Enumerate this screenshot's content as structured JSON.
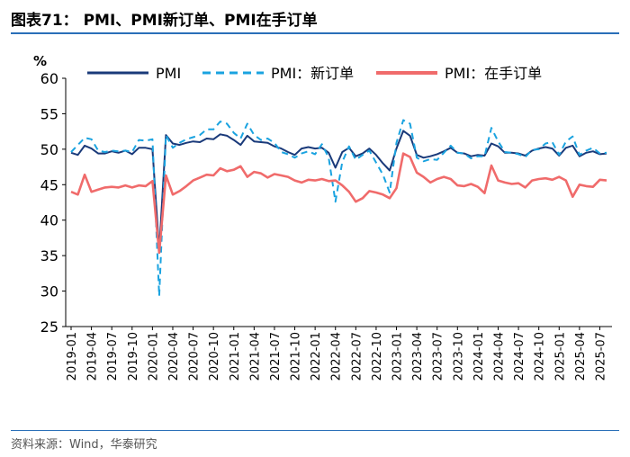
{
  "title": "图表71： PMI、PMI新订单、PMI在手订单",
  "source": "资料来源：Wind，华泰研究",
  "chart_data": {
    "type": "line",
    "ylabel": "%",
    "ylim": [
      25,
      60
    ],
    "yticks": [
      25,
      30,
      35,
      40,
      45,
      50,
      55,
      60
    ],
    "xtick_labels": [
      "2019-01",
      "2019-04",
      "2019-07",
      "2019-10",
      "2020-01",
      "2020-04",
      "2020-07",
      "2020-10",
      "2021-01",
      "2021-04",
      "2021-07",
      "2021-10",
      "2022-01",
      "2022-04",
      "2022-07",
      "2022-10",
      "2023-01",
      "2023-04",
      "2023-07",
      "2023-10",
      "2024-01",
      "2024-04",
      "2024-07",
      "2024-10",
      "2025-01",
      "2025-04",
      "2025-07"
    ],
    "x_start": "2019-01",
    "n_months": 80,
    "series": [
      {
        "name": "PMI",
        "color": "#1a3a7a",
        "dash": "none",
        "width": 2,
        "values": [
          49.5,
          49.2,
          50.5,
          50.1,
          49.4,
          49.4,
          49.7,
          49.5,
          49.8,
          49.3,
          50.2,
          50.2,
          50.0,
          35.7,
          52.0,
          50.8,
          50.6,
          50.9,
          51.1,
          51.0,
          51.5,
          51.4,
          52.1,
          51.9,
          51.3,
          50.6,
          51.9,
          51.1,
          51.0,
          50.9,
          50.4,
          50.1,
          49.6,
          49.2,
          50.1,
          50.3,
          50.1,
          50.2,
          49.5,
          47.4,
          49.6,
          50.2,
          49.0,
          49.4,
          50.1,
          49.2,
          48.0,
          47.0,
          50.1,
          52.6,
          51.9,
          49.2,
          48.8,
          49.0,
          49.3,
          49.7,
          50.2,
          49.5,
          49.4,
          49.0,
          49.2,
          49.1,
          50.8,
          50.4,
          49.5,
          49.5,
          49.4,
          49.1,
          49.8,
          50.1,
          50.3,
          50.1,
          49.1,
          50.2,
          50.5,
          49.0,
          49.5,
          49.7,
          49.3,
          49.4
        ]
      },
      {
        "name": "PMI：新订单",
        "color": "#1aa3e0",
        "dash": "7,5",
        "width": 2,
        "values": [
          49.6,
          50.6,
          51.6,
          51.4,
          49.8,
          49.6,
          49.8,
          49.7,
          49.8,
          49.6,
          51.3,
          51.2,
          51.4,
          29.3,
          52.0,
          50.2,
          50.9,
          51.4,
          51.7,
          52.0,
          52.8,
          52.8,
          53.9,
          53.6,
          52.3,
          51.5,
          53.6,
          52.0,
          51.3,
          51.5,
          50.9,
          49.6,
          49.3,
          48.8,
          49.4,
          49.7,
          49.3,
          50.7,
          48.8,
          42.6,
          48.2,
          50.4,
          48.5,
          49.2,
          49.8,
          48.1,
          46.4,
          43.9,
          50.9,
          54.1,
          53.6,
          48.8,
          48.3,
          48.6,
          48.5,
          49.5,
          50.5,
          49.5,
          49.4,
          48.7,
          49.0,
          49.0,
          53.0,
          51.1,
          49.6,
          49.5,
          49.3,
          48.9,
          49.9,
          50.0,
          50.8,
          51.0,
          49.2,
          51.1,
          51.8,
          49.2,
          49.8,
          50.2,
          49.4,
          49.5
        ]
      },
      {
        "name": "PMI：在手订单",
        "color": "#f06b6b",
        "dash": "none",
        "width": 2.6,
        "values": [
          44.0,
          43.6,
          46.4,
          44.0,
          44.3,
          44.6,
          44.7,
          44.6,
          44.9,
          44.6,
          44.9,
          44.8,
          45.5,
          35.4,
          46.3,
          43.6,
          44.1,
          44.8,
          45.6,
          46.0,
          46.4,
          46.3,
          47.3,
          46.9,
          47.1,
          47.6,
          46.1,
          46.8,
          46.6,
          46.0,
          46.5,
          46.3,
          46.1,
          45.6,
          45.3,
          45.7,
          45.6,
          45.8,
          45.5,
          45.6,
          44.9,
          44.0,
          42.6,
          43.1,
          44.1,
          43.9,
          43.6,
          43.1,
          44.5,
          49.4,
          48.9,
          46.7,
          46.1,
          45.3,
          45.8,
          46.1,
          45.8,
          44.9,
          44.8,
          45.1,
          44.7,
          43.8,
          47.7,
          45.6,
          45.3,
          45.1,
          45.2,
          44.6,
          45.6,
          45.8,
          45.9,
          45.7,
          46.1,
          45.6,
          43.3,
          45.0,
          44.8,
          44.7,
          45.7,
          45.6
        ]
      }
    ]
  }
}
